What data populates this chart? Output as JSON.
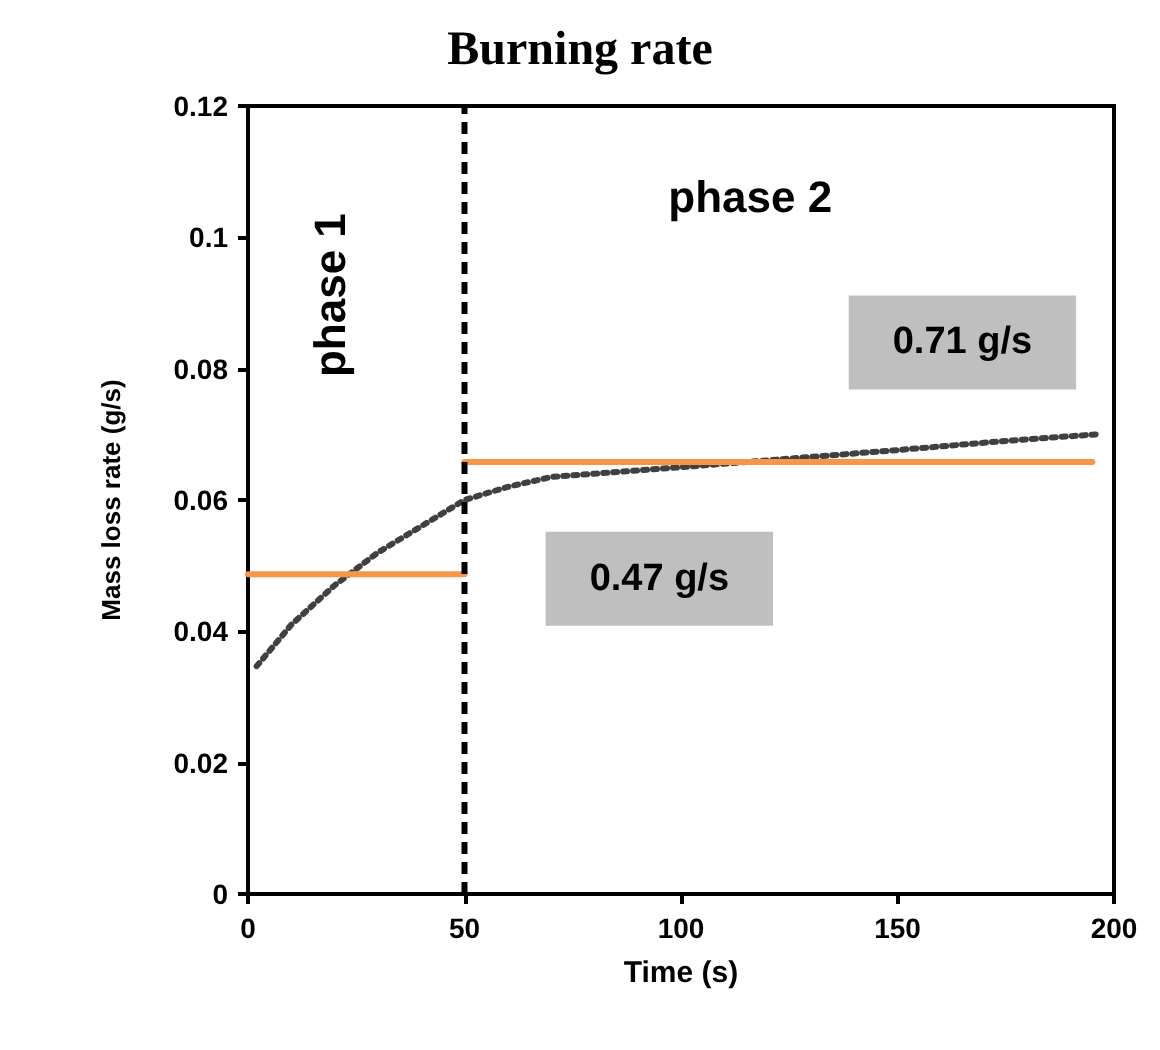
{
  "chart_data": {
    "type": "line",
    "title": "Burning rate",
    "xlabel": "Time (s)",
    "ylabel": "Mass loss rate (g/s)",
    "xlim": [
      0,
      200
    ],
    "xticks": [
      0,
      50,
      100,
      150,
      200
    ],
    "ylim": [
      0,
      0.12
    ],
    "yticks": [
      0,
      0.02,
      0.04,
      0.06,
      0.08,
      0.1,
      0.12
    ],
    "grid": false,
    "marker": "none",
    "series": [
      {
        "x": [
          2,
          10,
          20,
          30,
          40,
          50,
          60,
          70,
          80,
          90,
          100,
          125,
          150,
          175,
          196
        ],
        "values": [
          0.0347,
          0.041,
          0.047,
          0.052,
          0.056,
          0.06,
          0.062,
          0.0635,
          0.064,
          0.0645,
          0.065,
          0.0663,
          0.0676,
          0.069,
          0.07
        ],
        "color": "#404040",
        "line_style": "dotted"
      },
      {
        "x": [
          0,
          50
        ],
        "values": [
          0.0487,
          0.0487
        ],
        "color": "#f79646",
        "line_style": "solid"
      },
      {
        "x": [
          50,
          195
        ],
        "values": [
          0.0658,
          0.0658
        ],
        "color": "#f79646",
        "line_style": "solid"
      }
    ],
    "ref_lines": [
      {
        "axis": "x",
        "value": 50,
        "color": "#000000",
        "line_style": "dashed"
      }
    ],
    "annotations": [
      "phase 1",
      "phase 2",
      "0.47 g/s",
      "0.71 g/s"
    ]
  }
}
